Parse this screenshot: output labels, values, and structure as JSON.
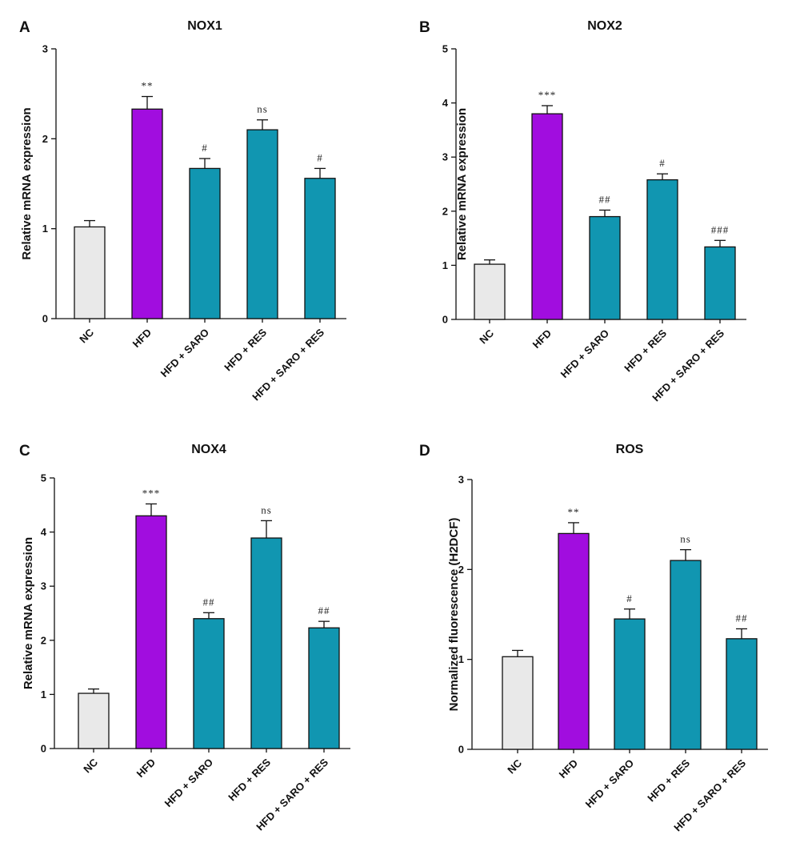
{
  "colors": {
    "NC": "#e9e9e9",
    "HFD": "#a10ddf",
    "treatment": "#1196b1"
  },
  "chart_data": [
    {
      "panel": "A",
      "type": "bar",
      "title": "NOX1",
      "ylabel": "Relative mRNA expression",
      "xlabel": "",
      "ylim": [
        0,
        3
      ],
      "yticks": [
        0,
        1,
        2,
        3
      ],
      "categories": [
        "NC",
        "HFD",
        "HFD + SARO",
        "HFD + RES",
        "HFD + SARO + RES"
      ],
      "values": [
        1.02,
        2.33,
        1.67,
        2.1,
        1.56
      ],
      "errors": [
        0.07,
        0.14,
        0.11,
        0.11,
        0.11
      ],
      "annotations": [
        "",
        "**",
        "#",
        "ns",
        "#"
      ]
    },
    {
      "panel": "B",
      "type": "bar",
      "title": "NOX2",
      "ylabel": "Relative mRNA expression",
      "xlabel": "",
      "ylim": [
        0,
        5
      ],
      "yticks": [
        0,
        1,
        2,
        3,
        4,
        5
      ],
      "categories": [
        "NC",
        "HFD",
        "HFD + SARO",
        "HFD + RES",
        "HFD + SARO + RES"
      ],
      "values": [
        1.02,
        3.8,
        1.9,
        2.58,
        1.34
      ],
      "errors": [
        0.08,
        0.15,
        0.12,
        0.11,
        0.12
      ],
      "annotations": [
        "",
        "***",
        "##",
        "#",
        "###"
      ]
    },
    {
      "panel": "C",
      "type": "bar",
      "title": "NOX4",
      "ylabel": "Relative mRNA expression",
      "xlabel": "",
      "ylim": [
        0,
        5
      ],
      "yticks": [
        0,
        1,
        2,
        3,
        4,
        5
      ],
      "categories": [
        "NC",
        "HFD",
        "HFD + SARO",
        "HFD + RES",
        "HFD + SARO + RES"
      ],
      "values": [
        1.02,
        4.3,
        2.4,
        3.89,
        2.23
      ],
      "errors": [
        0.08,
        0.22,
        0.11,
        0.32,
        0.12
      ],
      "annotations": [
        "",
        "***",
        "##",
        "ns",
        "##"
      ]
    },
    {
      "panel": "D",
      "type": "bar",
      "title": "ROS",
      "ylabel": "Normalized fluorescence (H2DCF)",
      "xlabel": "",
      "ylim": [
        0,
        3
      ],
      "yticks": [
        0,
        1,
        2,
        3
      ],
      "categories": [
        "NC",
        "HFD",
        "HFD + SARO",
        "HFD + RES",
        "HFD + SARO + RES"
      ],
      "values": [
        1.03,
        2.4,
        1.45,
        2.1,
        1.23
      ],
      "errors": [
        0.07,
        0.12,
        0.11,
        0.12,
        0.11
      ],
      "annotations": [
        "",
        "**",
        "#",
        "ns",
        "##"
      ]
    }
  ]
}
